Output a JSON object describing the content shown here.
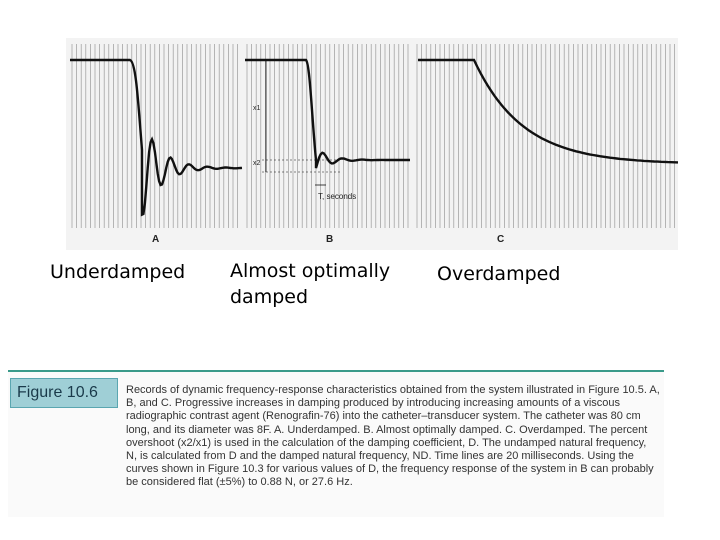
{
  "panels": [
    {
      "letter": "A",
      "label": "Underdamped"
    },
    {
      "letter": "B",
      "label": "Almost optimally damped"
    },
    {
      "letter": "C",
      "label": "Overdamped"
    }
  ],
  "annotations": {
    "x1": "x1",
    "x2": "x2",
    "time": "T, seconds"
  },
  "caption": {
    "figure_label": "Figure 10.6",
    "text": "Records of dynamic frequency-response characteristics obtained from the system illustrated in Figure 10.5. A, B, and C. Progressive increases in damping produced by introducing increasing amounts of a viscous radiographic contrast agent (Renografin-76) into the catheter–transducer system. The catheter was 80 cm long, and its diameter was 8F. A. Underdamped. B. Almost optimally damped. C. Overdamped. The percent overshoot (x2/x1) is used in the calculation of the damping coefficient, D. The undamped natural frequency, N, is calculated from D and the damped natural frequency, ND. Time lines are 20 milliseconds. Using the curves shown in Figure 10.3 for various values of D, the frequency response of the system in B can probably be considered flat (±5%) to 0.88 N, or 27.6 Hz."
  },
  "colors": {
    "trace": "#111111",
    "time_lines": "#9a9a9a",
    "badge": "#9fcfd6",
    "accent_rule": "#3a9a8a"
  }
}
